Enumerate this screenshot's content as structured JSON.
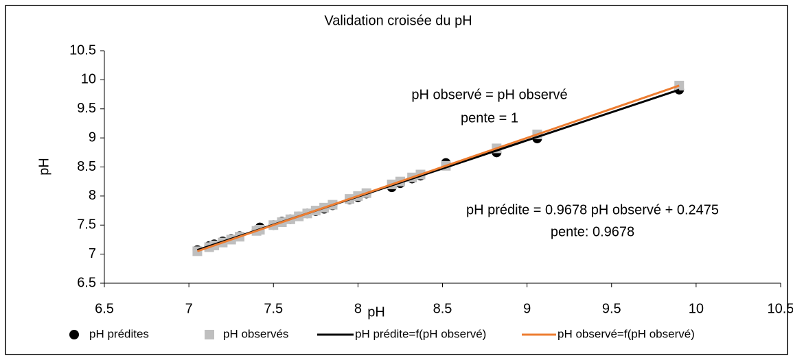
{
  "chart_data": {
    "type": "scatter",
    "title": "Validation croisée du pH",
    "xlabel": "pH",
    "ylabel": "pH",
    "xlim": [
      6.5,
      10.5
    ],
    "xticks": [
      6.5,
      7,
      7.5,
      8,
      8.5,
      9,
      9.5,
      10,
      10.5
    ],
    "ylim": [
      6.5,
      10.5
    ],
    "yticks": [
      6.5,
      7,
      7.5,
      8,
      8.5,
      9,
      9.5,
      10,
      10.5
    ],
    "annotations": [
      "pH observé = pH observé",
      "pente = 1",
      "pH prédite = 0.9678 pH observé + 0.2475",
      "pente: 0.9678"
    ],
    "series": [
      {
        "name": "pH prédites",
        "color": "#000000",
        "marker": "circle",
        "x": [
          7.05,
          7.12,
          7.15,
          7.2,
          7.25,
          7.3,
          7.4,
          7.42,
          7.5,
          7.55,
          7.6,
          7.65,
          7.7,
          7.75,
          7.8,
          7.85,
          7.95,
          8.0,
          8.05,
          8.2,
          8.25,
          8.32,
          8.37,
          8.52,
          8.82,
          9.06,
          9.9
        ],
        "values": [
          7.07,
          7.14,
          7.17,
          7.22,
          7.26,
          7.31,
          7.41,
          7.46,
          7.5,
          7.56,
          7.6,
          7.65,
          7.7,
          7.74,
          7.78,
          7.84,
          7.94,
          7.98,
          8.04,
          8.15,
          8.22,
          8.3,
          8.35,
          8.57,
          8.75,
          8.99,
          9.83
        ]
      },
      {
        "name": "pH observés",
        "color": "#bfbfbf",
        "marker": "square",
        "x": [
          7.05,
          7.12,
          7.15,
          7.2,
          7.25,
          7.3,
          7.4,
          7.42,
          7.5,
          7.55,
          7.6,
          7.65,
          7.7,
          7.75,
          7.8,
          7.85,
          7.95,
          8.0,
          8.05,
          8.2,
          8.25,
          8.32,
          8.37,
          8.52,
          8.82,
          9.06,
          9.9
        ],
        "values": [
          7.05,
          7.12,
          7.15,
          7.2,
          7.25,
          7.3,
          7.4,
          7.42,
          7.5,
          7.55,
          7.6,
          7.65,
          7.7,
          7.75,
          7.8,
          7.85,
          7.95,
          8.0,
          8.05,
          8.2,
          8.25,
          8.32,
          8.37,
          8.52,
          8.82,
          9.06,
          9.9
        ]
      },
      {
        "name": "pH prédite=f(pH observé)",
        "color": "#000000",
        "marker": "line",
        "x": [
          7.05,
          9.9
        ],
        "values": [
          7.0705,
          9.8287
        ]
      },
      {
        "name": "pH observé=f(pH observé)",
        "color": "#ed7d31",
        "marker": "line",
        "x": [
          7.05,
          9.9
        ],
        "values": [
          7.05,
          9.9
        ]
      }
    ]
  }
}
